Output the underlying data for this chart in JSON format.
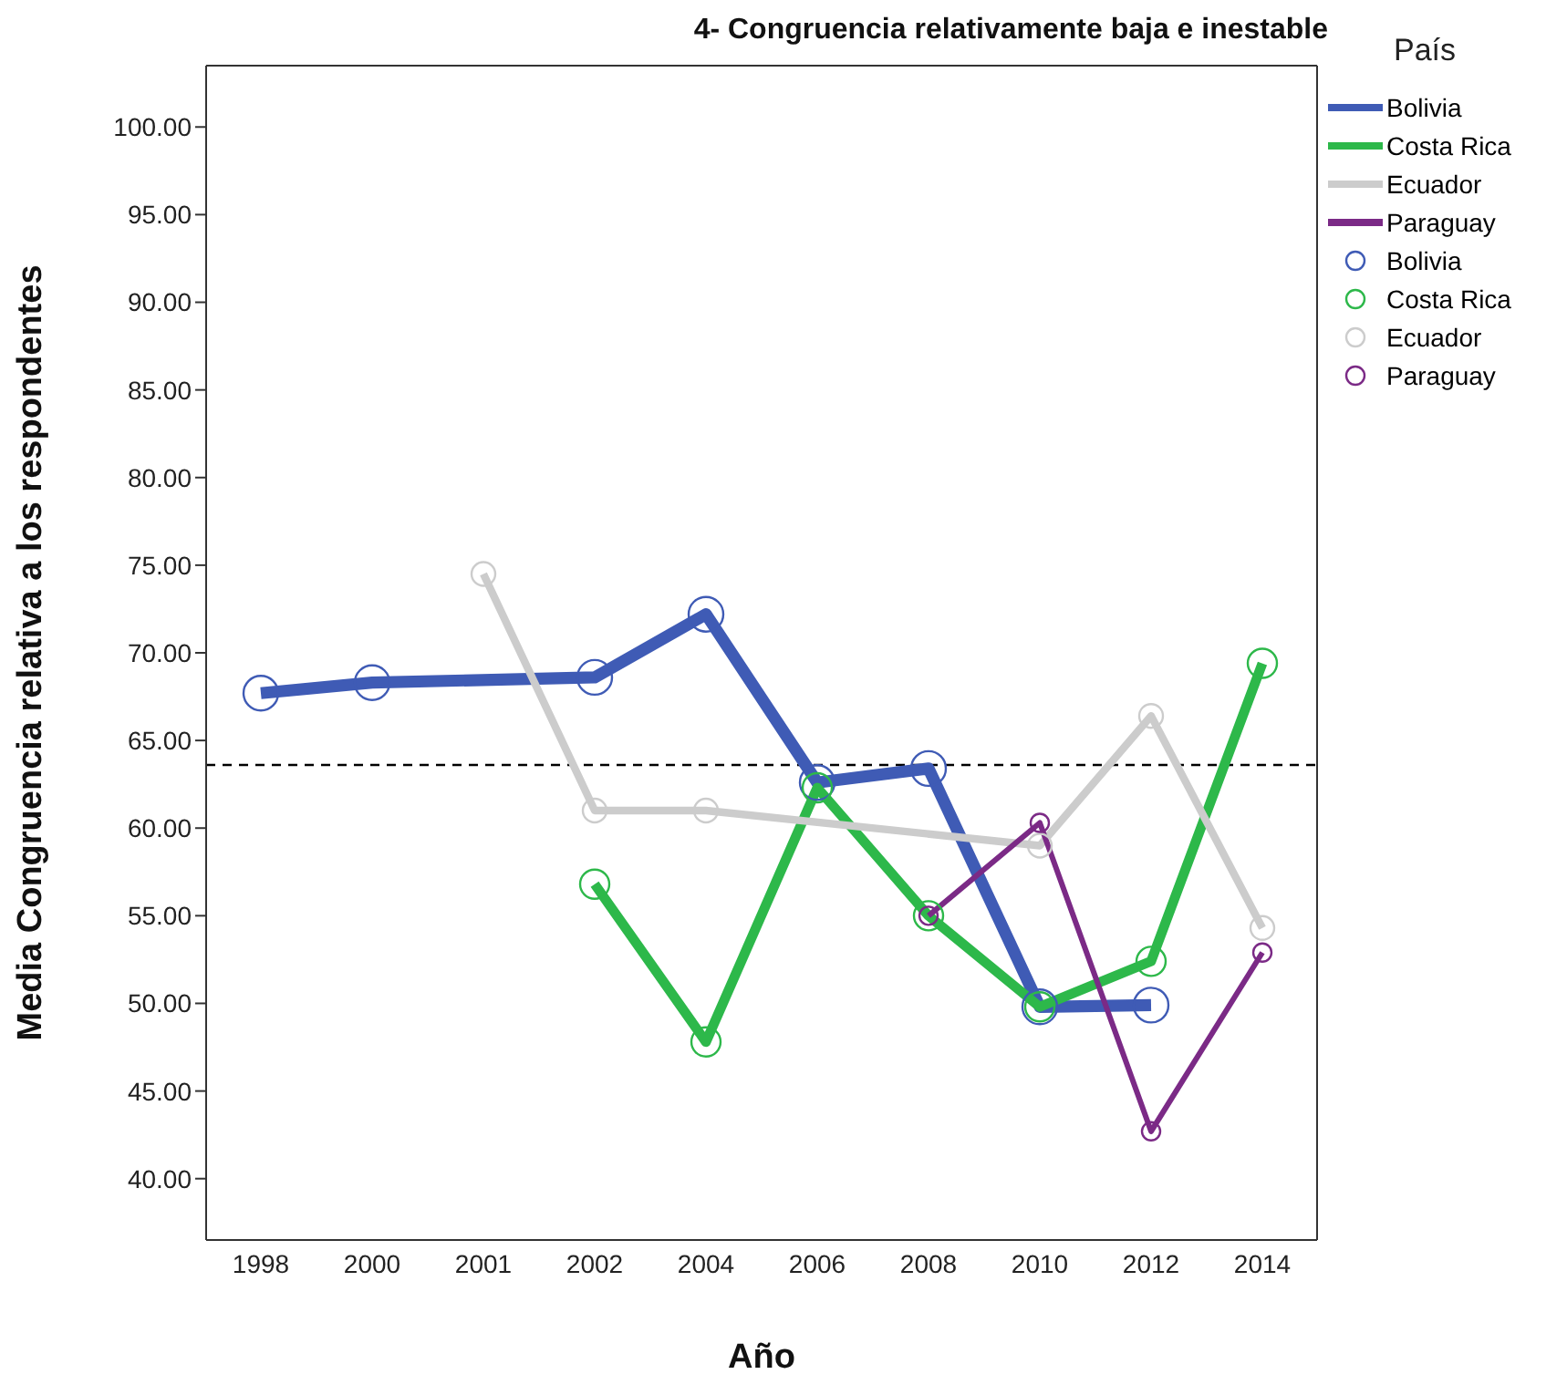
{
  "chart_data": {
    "type": "line",
    "title": "4- Congruencia relativamente baja e inestable",
    "xlabel": "Año",
    "ylabel": "Media Congruencia relativa a los respondentes",
    "legend_title": "País",
    "categories": [
      "1998",
      "2000",
      "2001",
      "2002",
      "2004",
      "2006",
      "2008",
      "2010",
      "2012",
      "2014"
    ],
    "series": [
      {
        "name": "Bolivia",
        "color": "#3f5bb5",
        "values": [
          67.7,
          68.3,
          null,
          68.6,
          72.2,
          62.6,
          63.4,
          49.8,
          49.9,
          null
        ]
      },
      {
        "name": "Costa Rica",
        "color": "#2db84a",
        "values": [
          null,
          null,
          null,
          56.8,
          47.8,
          62.3,
          55.0,
          49.8,
          52.4,
          69.4
        ]
      },
      {
        "name": "Ecuador",
        "color": "#cccccc",
        "values": [
          null,
          null,
          74.5,
          61.0,
          61.0,
          null,
          null,
          59.0,
          66.4,
          54.3
        ]
      },
      {
        "name": "Paraguay",
        "color": "#7b2a86",
        "values": [
          null,
          null,
          null,
          null,
          null,
          null,
          55.0,
          60.3,
          42.7,
          52.9
        ]
      }
    ],
    "ylim": [
      36.5,
      103.5
    ],
    "yticks": [
      {
        "value": 40,
        "label": "40.00"
      },
      {
        "value": 45,
        "label": "45.00"
      },
      {
        "value": 50,
        "label": "50.00"
      },
      {
        "value": 55,
        "label": "55.00"
      },
      {
        "value": 60,
        "label": "60.00"
      },
      {
        "value": 65,
        "label": "65.00"
      },
      {
        "value": 70,
        "label": "70.00"
      },
      {
        "value": 75,
        "label": "75.00"
      },
      {
        "value": 80,
        "label": "80.00"
      },
      {
        "value": 85,
        "label": "85.00"
      },
      {
        "value": 90,
        "label": "90.00"
      },
      {
        "value": 95,
        "label": "95.00"
      },
      {
        "value": 100,
        "label": "100.00"
      }
    ],
    "ref_lines": [
      {
        "axis": "y",
        "value": 63.6,
        "color": "#000000",
        "line_style": "dashed"
      }
    ],
    "marker": "circle",
    "line_style": "solid",
    "legend": "right",
    "grid": false
  }
}
